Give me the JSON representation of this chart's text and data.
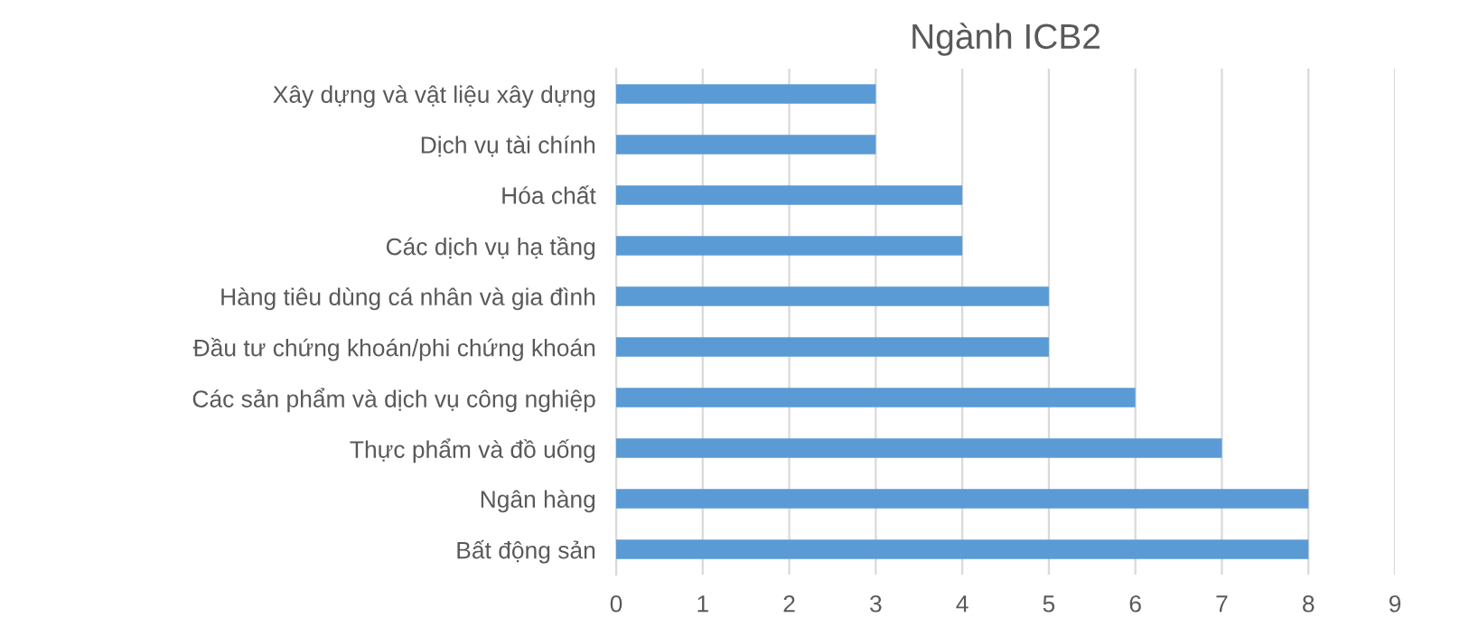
{
  "chart_data": {
    "type": "bar",
    "orientation": "horizontal",
    "title": "Ngành ICB2",
    "categories": [
      "Xây dựng và vật liệu xây dựng",
      "Dịch vụ tài chính",
      "Hóa chất",
      "Các dịch vụ hạ tầng",
      "Hàng tiêu dùng cá nhân và gia đình",
      "Đầu tư chứng khoán/phi chứng khoán",
      "Các sản phẩm và dịch vụ công nghiệp",
      "Thực phẩm và đồ uống",
      "Ngân hàng",
      "Bất động sản"
    ],
    "values": [
      3,
      3,
      4,
      4,
      5,
      5,
      6,
      7,
      8,
      8
    ],
    "color": "#5b9bd5",
    "xlim": [
      0,
      9
    ],
    "xticks": [
      0,
      1,
      2,
      3,
      4,
      5,
      6,
      7,
      8,
      9
    ],
    "grid": "x"
  }
}
